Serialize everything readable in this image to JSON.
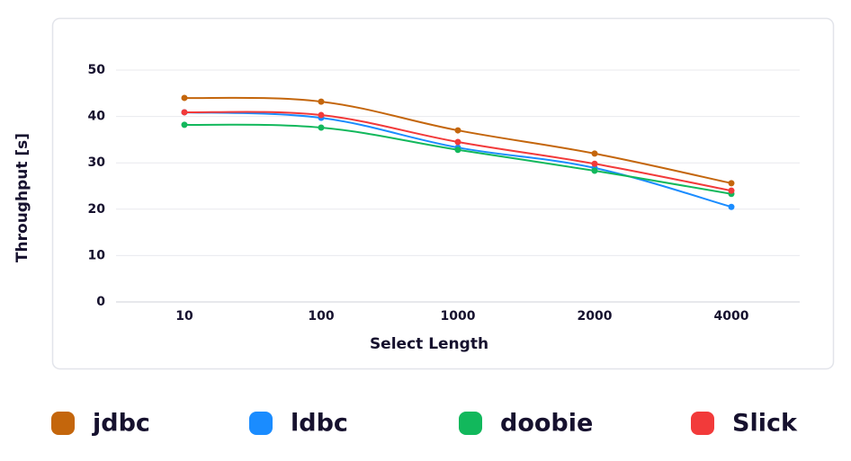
{
  "chart_data": {
    "type": "line",
    "categories": [
      "10",
      "100",
      "1000",
      "2000",
      "4000"
    ],
    "x_label": "Select Length",
    "y_label": "Throughput [s]",
    "ylim": [
      0,
      50
    ],
    "yticks": [
      0,
      10,
      20,
      30,
      40,
      50
    ],
    "grid": true,
    "legend": "bottom",
    "series": [
      {
        "name": "jdbc",
        "color": "#c4660c",
        "values": [
          44.0,
          43.2,
          37.0,
          32.0,
          25.6
        ]
      },
      {
        "name": "ldbc",
        "color": "#1a8cff",
        "values": [
          40.9,
          39.7,
          33.3,
          28.9,
          20.5
        ]
      },
      {
        "name": "doobie",
        "color": "#12b85c",
        "values": [
          38.2,
          37.6,
          32.8,
          28.3,
          23.3
        ]
      },
      {
        "name": "Slick",
        "color": "#f23a3a",
        "values": [
          40.9,
          40.3,
          34.5,
          29.8,
          24.0
        ]
      }
    ]
  }
}
